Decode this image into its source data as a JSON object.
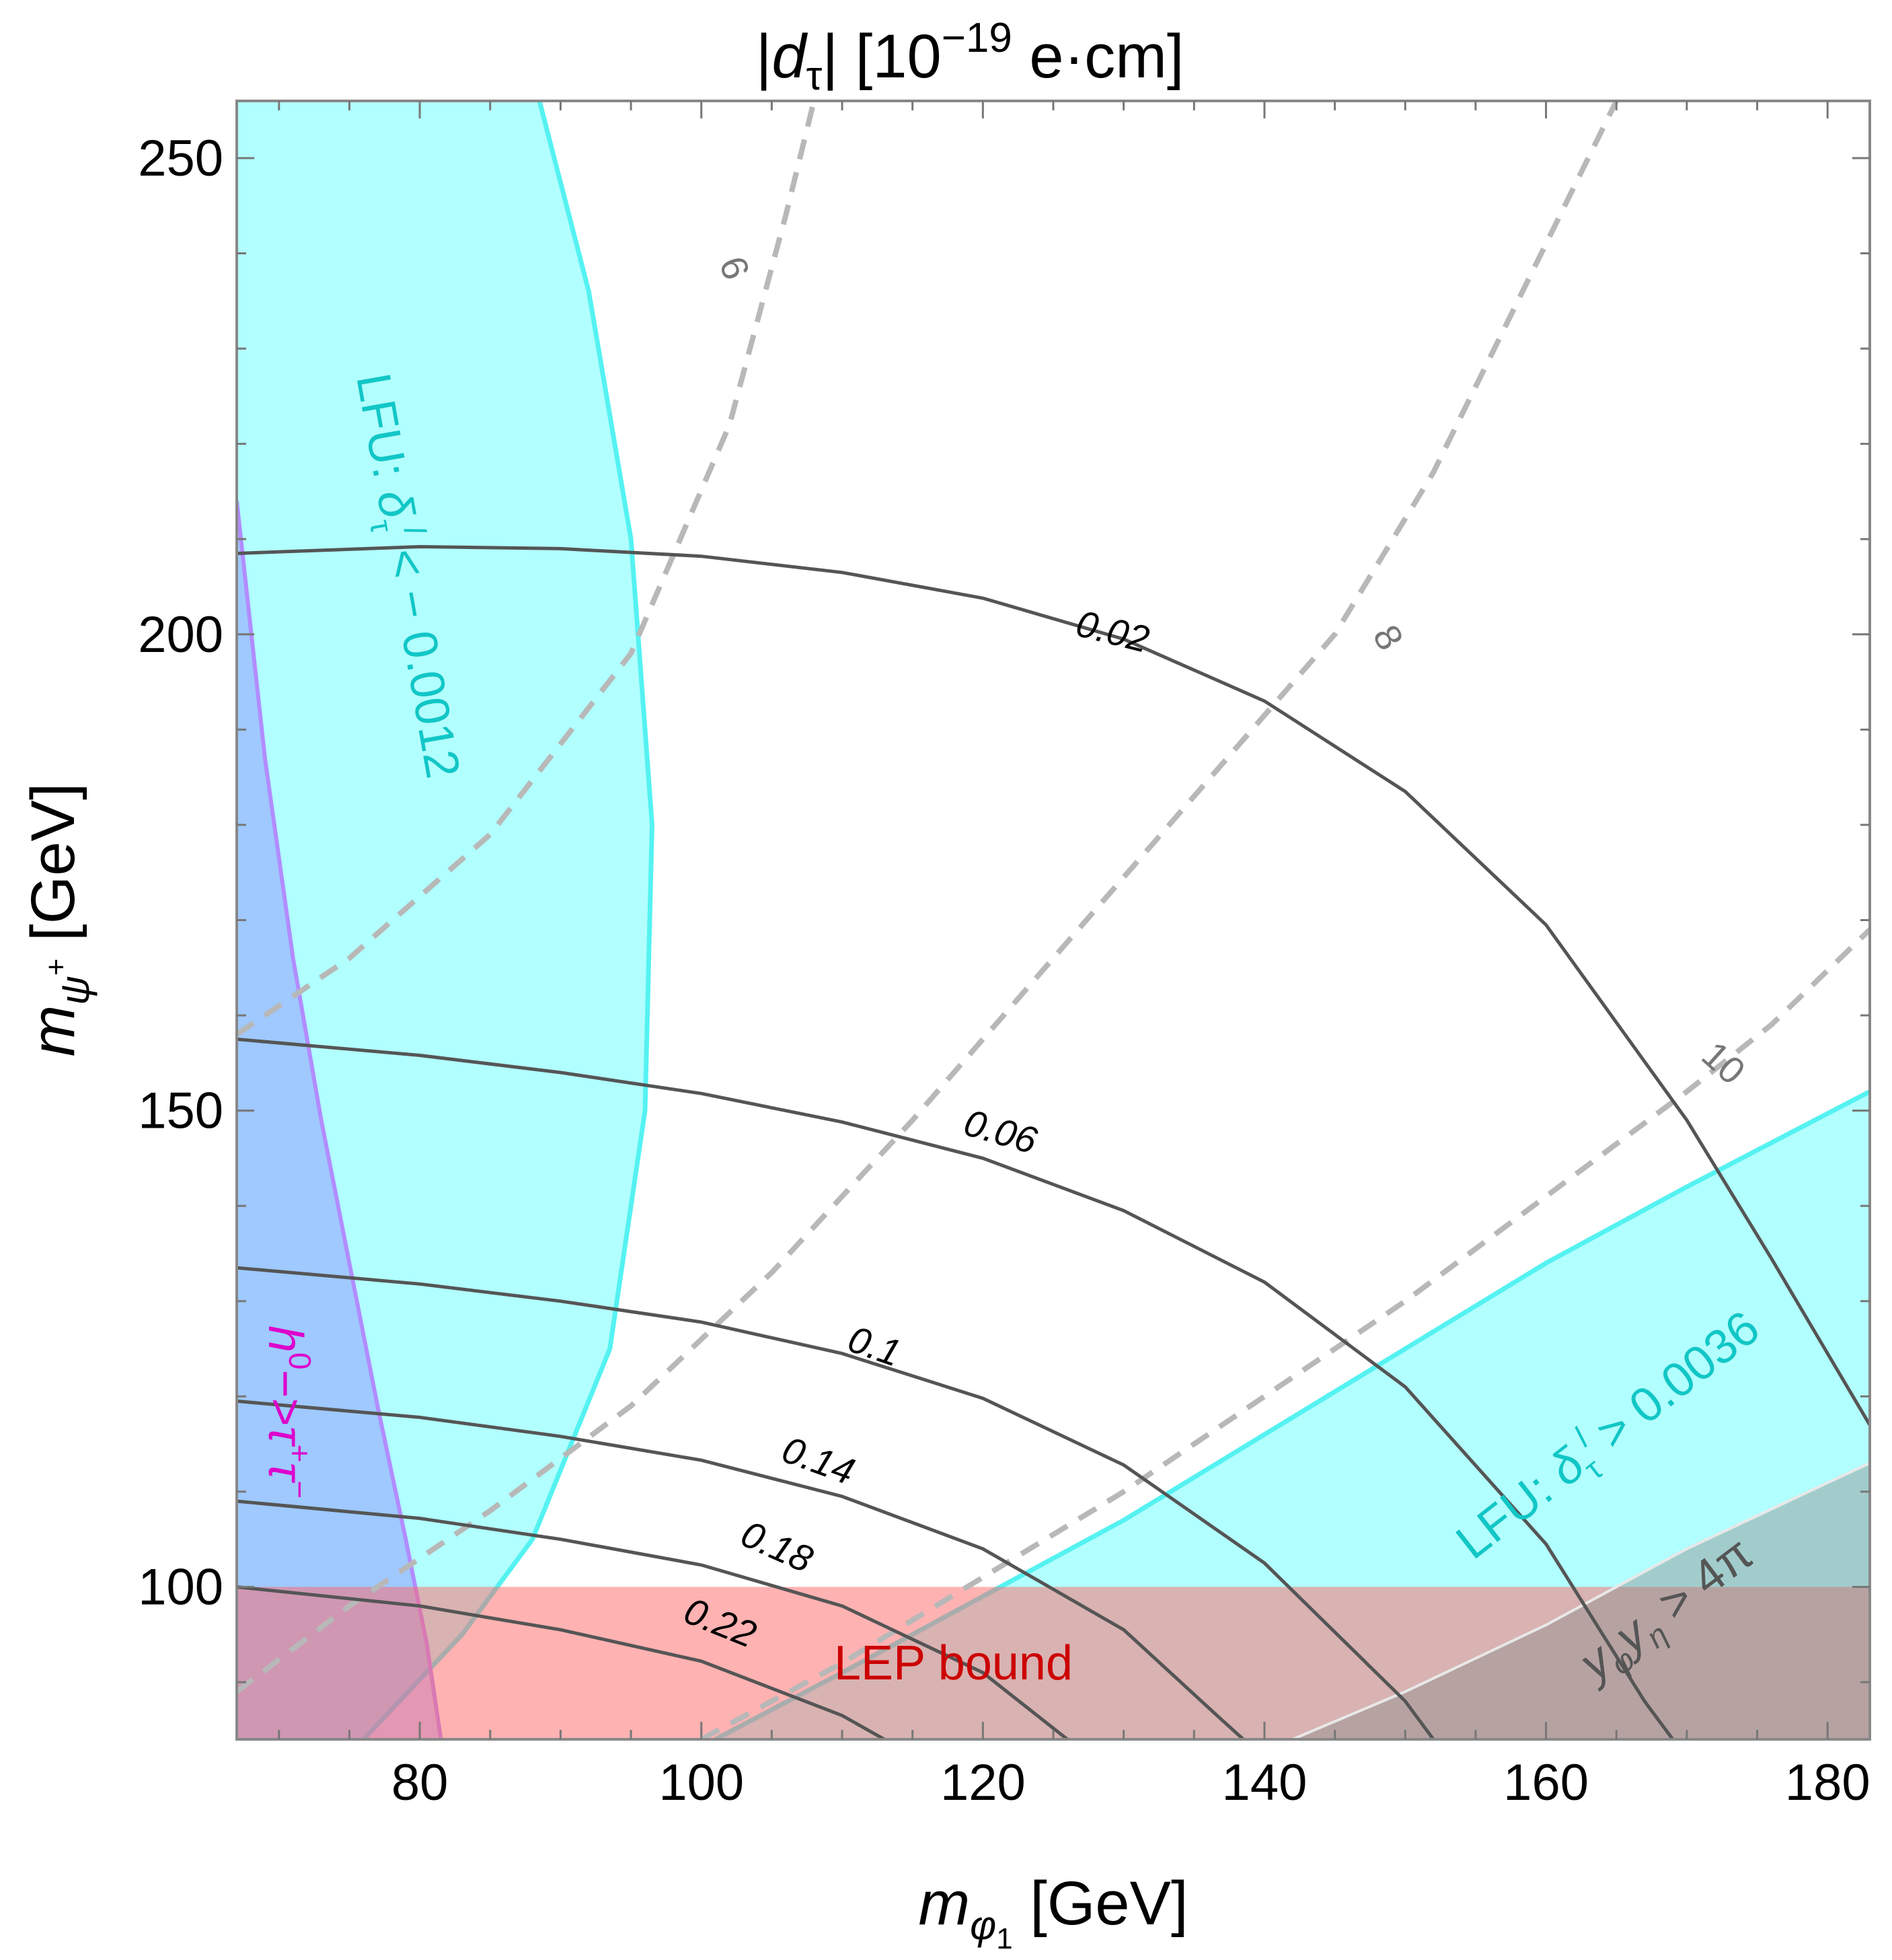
{
  "chart_data": {
    "type": "contour",
    "title": "|d_τ| [10^-19 e·cm]",
    "title_parts": {
      "bar_left": "|",
      "d": "d",
      "tau": "τ",
      "bar_right": "|",
      "unit_open": " [10",
      "exponent": "−19",
      "unit_close": " e·cm]"
    },
    "xlabel": {
      "m": "m",
      "sub": "φ",
      "sub2": "1",
      "unit": " [GeV]"
    },
    "ylabel": {
      "m": "m",
      "sub": "ψ",
      "sup": "+",
      "unit": " [GeV]"
    },
    "xlim": [
      67,
      183
    ],
    "ylim": [
      84,
      256
    ],
    "x_ticks": [
      80,
      100,
      120,
      140,
      160,
      180
    ],
    "y_ticks": [
      100,
      150,
      200,
      250
    ],
    "x_tick_labels": [
      "80",
      "100",
      "120",
      "140",
      "160",
      "180"
    ],
    "y_tick_labels": [
      "100",
      "150",
      "200",
      "250"
    ],
    "solid_contours": [
      {
        "label": "0.02",
        "points": [
          [
            67,
            208.5
          ],
          [
            80,
            209.2
          ],
          [
            90,
            209.0
          ],
          [
            100,
            208.2
          ],
          [
            110,
            206.5
          ],
          [
            120,
            203.8
          ],
          [
            130,
            199.5
          ],
          [
            140,
            193.0
          ],
          [
            150,
            183.5
          ],
          [
            160,
            169.5
          ],
          [
            170,
            149.0
          ],
          [
            176,
            134.5
          ],
          [
            183,
            117.0
          ]
        ],
        "label_at": [
          129,
          199
        ],
        "label_angle": 14
      },
      {
        "label": "0.06",
        "points": [
          [
            67,
            157.5
          ],
          [
            80,
            155.8
          ],
          [
            90,
            154.0
          ],
          [
            100,
            151.8
          ],
          [
            110,
            148.8
          ],
          [
            120,
            145.0
          ],
          [
            130,
            139.5
          ],
          [
            140,
            132.0
          ],
          [
            150,
            121.0
          ],
          [
            160,
            104.5
          ],
          [
            167,
            88.0
          ],
          [
            169,
            84.0
          ]
        ],
        "label_at": [
          121,
          146.5
        ],
        "label_angle": 16
      },
      {
        "label": "0.1",
        "points": [
          [
            67,
            133.5
          ],
          [
            80,
            131.8
          ],
          [
            90,
            130.0
          ],
          [
            100,
            127.8
          ],
          [
            110,
            124.5
          ],
          [
            120,
            119.8
          ],
          [
            130,
            112.8
          ],
          [
            140,
            102.5
          ],
          [
            150,
            88.0
          ],
          [
            152,
            84.0
          ]
        ],
        "label_at": [
          112,
          124
        ],
        "label_angle": 19
      },
      {
        "label": "0.14",
        "points": [
          [
            67,
            119.5
          ],
          [
            80,
            117.8
          ],
          [
            90,
            115.8
          ],
          [
            100,
            113.3
          ],
          [
            110,
            109.5
          ],
          [
            120,
            104.0
          ],
          [
            130,
            95.5
          ],
          [
            137,
            86.0
          ],
          [
            138.5,
            84.0
          ]
        ],
        "label_at": [
          108,
          112
        ],
        "label_angle": 20
      },
      {
        "label": "0.18",
        "points": [
          [
            67,
            109.0
          ],
          [
            80,
            107.2
          ],
          [
            90,
            105.0
          ],
          [
            100,
            102.3
          ],
          [
            110,
            98.0
          ],
          [
            120,
            91.0
          ],
          [
            126,
            84.0
          ]
        ],
        "label_at": [
          105,
          103
        ],
        "label_angle": 24
      },
      {
        "label": "0.22",
        "points": [
          [
            67,
            100.0
          ],
          [
            80,
            98.0
          ],
          [
            90,
            95.5
          ],
          [
            100,
            92.2
          ],
          [
            110,
            86.5
          ],
          [
            113,
            84.0
          ]
        ],
        "label_at": [
          101,
          95
        ],
        "label_angle": 22
      }
    ],
    "dashed_contours": [
      {
        "label": "6",
        "points": [
          [
            67,
            158
          ],
          [
            75,
            166
          ],
          [
            85,
            179
          ],
          [
            95,
            198
          ],
          [
            102,
            222
          ],
          [
            106,
            244
          ],
          [
            108,
            256
          ]
        ],
        "label_at": [
          101.5,
          238
        ],
        "label_angle": 70
      },
      {
        "label": "8",
        "points": [
          [
            67,
            89
          ],
          [
            75,
            98
          ],
          [
            85,
            108
          ],
          [
            95,
            119
          ],
          [
            105,
            133
          ],
          [
            115,
            149
          ],
          [
            125,
            166
          ],
          [
            135,
            183
          ],
          [
            145,
            200
          ],
          [
            152,
            217
          ],
          [
            161,
            244
          ],
          [
            165,
            256
          ]
        ],
        "label_at": [
          148,
          199
        ],
        "label_angle": 60
      },
      {
        "label": "10",
        "points": [
          [
            100,
            84
          ],
          [
            110,
            92
          ],
          [
            120,
            101
          ],
          [
            130,
            110
          ],
          [
            140,
            120
          ],
          [
            150,
            130
          ],
          [
            160,
            141
          ],
          [
            170,
            152
          ],
          [
            176,
            159
          ],
          [
            183,
            169
          ]
        ],
        "label_at": [
          172,
          154
        ],
        "label_angle": 42
      }
    ],
    "regions": [
      {
        "name": "LFU: δ_τ^l < −0.0012",
        "color": "#00ffff",
        "opacity": 0.3,
        "boundary_left": [
          [
            67,
            256
          ]
        ],
        "boundary_right": [
          [
            88.5,
            256
          ],
          [
            92,
            236
          ],
          [
            95,
            210
          ],
          [
            96.5,
            180
          ],
          [
            96,
            150
          ],
          [
            93.5,
            125
          ],
          [
            88,
            105
          ],
          [
            83,
            95
          ],
          [
            76,
            84
          ]
        ]
      },
      {
        "name": "LFU: δ_τ^l > 0.0036",
        "color": "#00ffff",
        "opacity": 0.3,
        "boundary": [
          [
            101,
            84
          ],
          [
            110,
            91
          ],
          [
            120,
            99
          ],
          [
            130,
            107
          ],
          [
            140,
            116
          ],
          [
            150,
            125
          ],
          [
            160,
            134
          ],
          [
            170,
            142
          ],
          [
            183,
            152
          ]
        ]
      },
      {
        "name": "h0 → τ+τ−",
        "color": "#8888ff",
        "opacity": 0.45,
        "boundary": [
          [
            67,
            214
          ],
          [
            69,
            187
          ],
          [
            71,
            166
          ],
          [
            73,
            149
          ],
          [
            75,
            134
          ],
          [
            77,
            119
          ],
          [
            79,
            105
          ],
          [
            80.5,
            94
          ],
          [
            81.5,
            84
          ]
        ]
      },
      {
        "name": "LEP bound",
        "color": "#ff6666",
        "opacity": 0.5,
        "y_max": 100
      },
      {
        "name": "y_φ y_η > 4π",
        "color": "#aaaaaa",
        "opacity": 0.6,
        "boundary": [
          [
            142,
            84
          ],
          [
            150,
            89
          ],
          [
            160,
            96
          ],
          [
            170,
            104
          ],
          [
            183,
            113
          ]
        ]
      }
    ],
    "region_labels": {
      "lfu_upper": {
        "prefix": "LFU: ",
        "delta": "δ",
        "sub": "τ",
        "sup": "l",
        "suffix": " < − 0.0012"
      },
      "lfu_lower": {
        "prefix": "LFU: ",
        "delta": "δ",
        "sub": "τ",
        "sup": "l",
        "suffix": " > 0.0036"
      },
      "higgs": {
        "h": "h",
        "sup": "0",
        "arrow": "−>",
        "tau1": "τ",
        "plus": "+",
        "tau2": "τ",
        "minus": "−"
      },
      "lep": "LEP bound",
      "pert": {
        "y1": "y",
        "s1": "φ",
        "y2": "y",
        "s2": "η",
        "rel": " > 4π"
      }
    },
    "colors": {
      "cyan_fill": "#00ffff",
      "cyan_edge": "#55f2f2",
      "blue_fill": "#8888ff",
      "magenta": "#ff2aa8",
      "red_fill": "#ff6666",
      "gray_fill": "#9a8f8f",
      "contour": "#555555",
      "dashed": "#b8b8b8"
    }
  }
}
